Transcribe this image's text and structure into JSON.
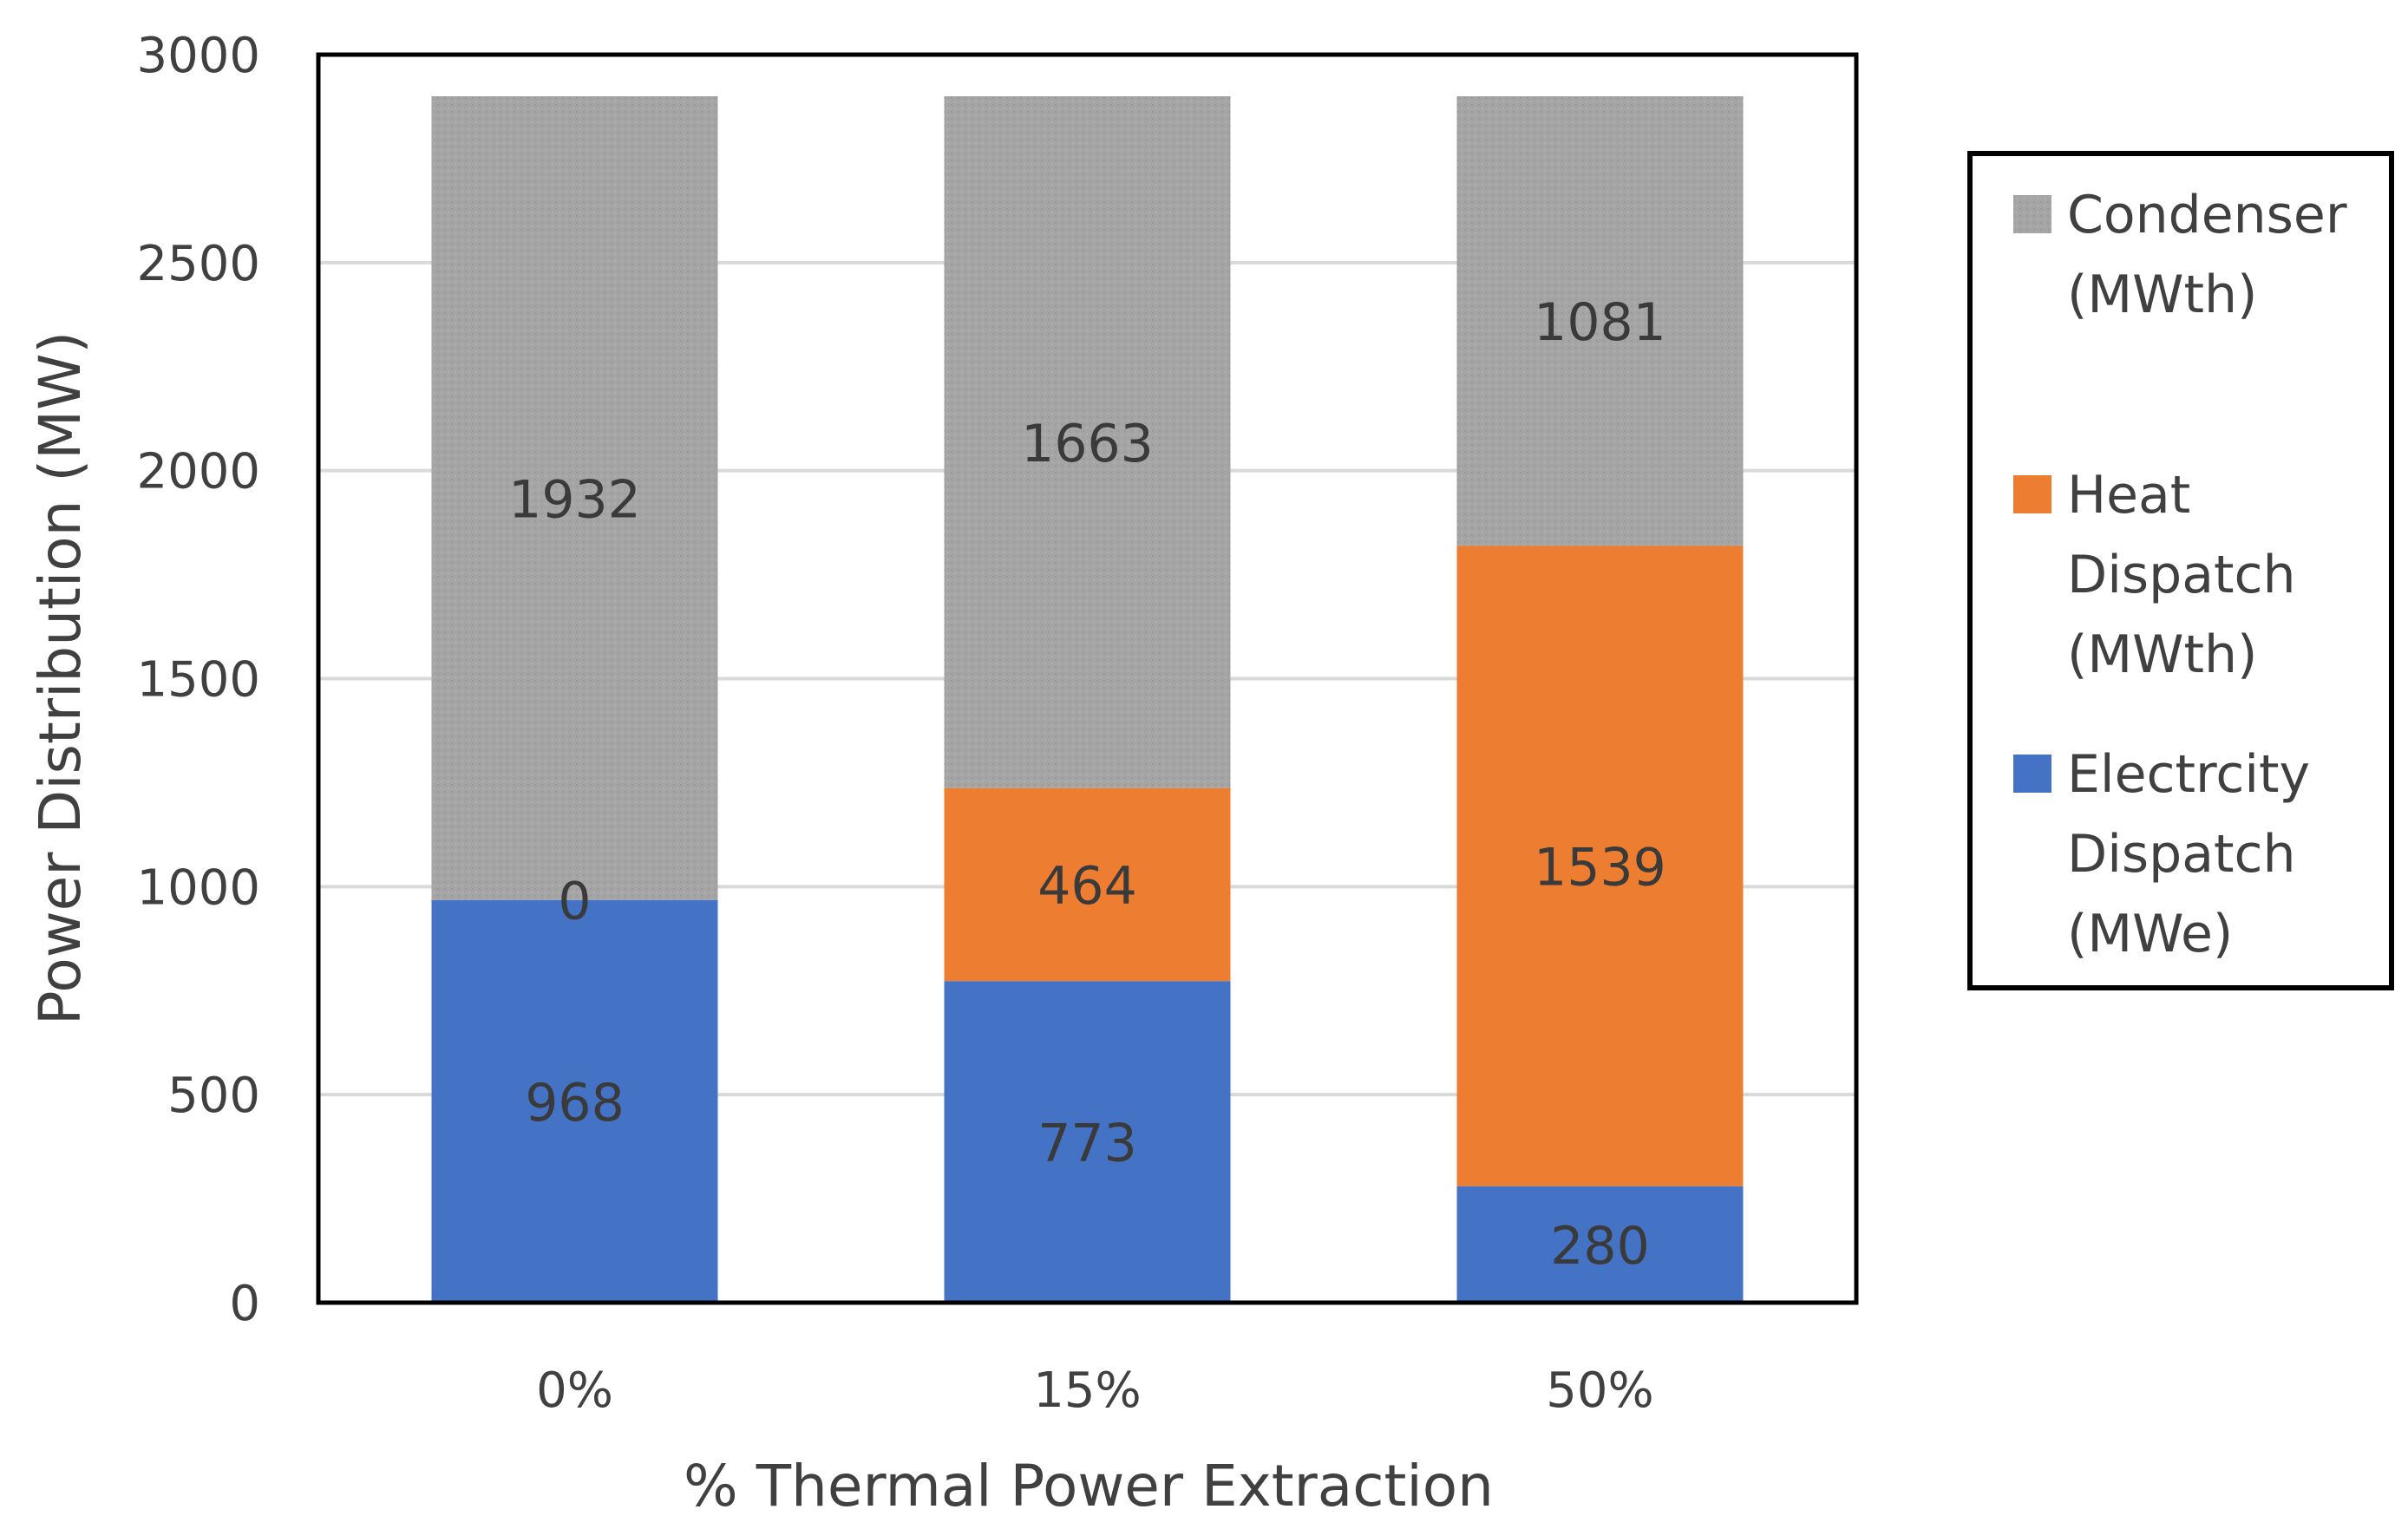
{
  "chart_data": {
    "type": "bar",
    "stacked": true,
    "title": "",
    "xlabel": "% Thermal Power Extraction",
    "ylabel": "Power Distribution (MW)",
    "categories": [
      "0%",
      "15%",
      "50%"
    ],
    "ylim": [
      0,
      3000
    ],
    "yticks": [
      0,
      500,
      1000,
      1500,
      2000,
      2500,
      3000
    ],
    "grid": true,
    "legend_position": "right",
    "series": [
      {
        "name": "Electrcity Dispatch (MWe)",
        "legend_lines": [
          "Electrcity",
          "Dispatch",
          "(MWe)"
        ],
        "color": "#4472C4",
        "values": [
          968,
          773,
          280
        ]
      },
      {
        "name": "Heat Dispatch (MWth)",
        "legend_lines": [
          "Heat",
          "Dispatch",
          "(MWth)"
        ],
        "color": "#ED7D31",
        "values": [
          0,
          464,
          1539
        ]
      },
      {
        "name": "Condenser (MWth)",
        "legend_lines": [
          "Condenser",
          "(MWth)"
        ],
        "color": "#A5A5A5",
        "values": [
          1932,
          1663,
          1081
        ]
      }
    ],
    "legend_order": [
      2,
      1,
      0
    ]
  }
}
